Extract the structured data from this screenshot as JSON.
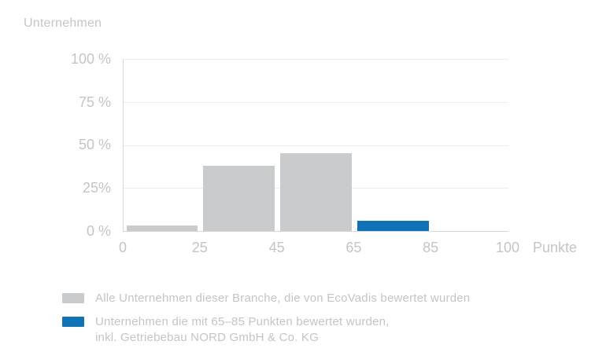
{
  "colors": {
    "bar_gray": "#c9cbcd",
    "bar_blue": "#1173b5",
    "text": "#c2c5c7",
    "grid": "#eceded",
    "axis": "#d6d7d8",
    "background": "#ffffff"
  },
  "axis_titles": {
    "y": "Unternehmen",
    "x": "Punkte"
  },
  "chart_data": {
    "type": "bar",
    "title": "Unternehmen",
    "xlabel": "Punkte",
    "ylabel": "Unternehmen",
    "y_unit": "%",
    "ylim": [
      0,
      100
    ],
    "grid": "horizontal",
    "legend_position": "bottom-left",
    "x_ticks": [
      "0",
      "25",
      "45",
      "65",
      "85",
      "100"
    ],
    "y_ticks": [
      "100 %",
      "75 %",
      "50 %",
      "25%",
      "0 %"
    ],
    "bins": [
      {
        "range_points": [
          0,
          25
        ],
        "value_pct": 3,
        "series": "all_companies"
      },
      {
        "range_points": [
          25,
          45
        ],
        "value_pct": 38,
        "series": "all_companies"
      },
      {
        "range_points": [
          45,
          65
        ],
        "value_pct": 45,
        "series": "all_companies"
      },
      {
        "range_points": [
          65,
          85
        ],
        "value_pct": 6,
        "series": "highlight_65_85"
      },
      {
        "range_points": [
          85,
          100
        ],
        "value_pct": 0,
        "series": "none"
      }
    ],
    "series": [
      {
        "name": "all_companies",
        "color": "#c9cbcd",
        "label": "Alle Unternehmen dieser Branche, die von EcoVadis bewertet wurden"
      },
      {
        "name": "highlight_65_85",
        "color": "#1173b5",
        "label": "Unternehmen die mit 65–85 Punkten bewertet wurden, inkl. Getriebebau NORD GmbH & Co. KG"
      }
    ]
  },
  "legend": {
    "items": [
      {
        "swatch_color": "#c9cbcd",
        "lines": [
          "Alle Unternehmen dieser Branche, die von EcoVadis bewertet wurden"
        ]
      },
      {
        "swatch_color": "#1173b5",
        "lines": [
          "Unternehmen die mit 65–85 Punkten bewertet wurden,",
          "inkl. Getriebebau NORD GmbH & Co. KG"
        ]
      }
    ]
  }
}
